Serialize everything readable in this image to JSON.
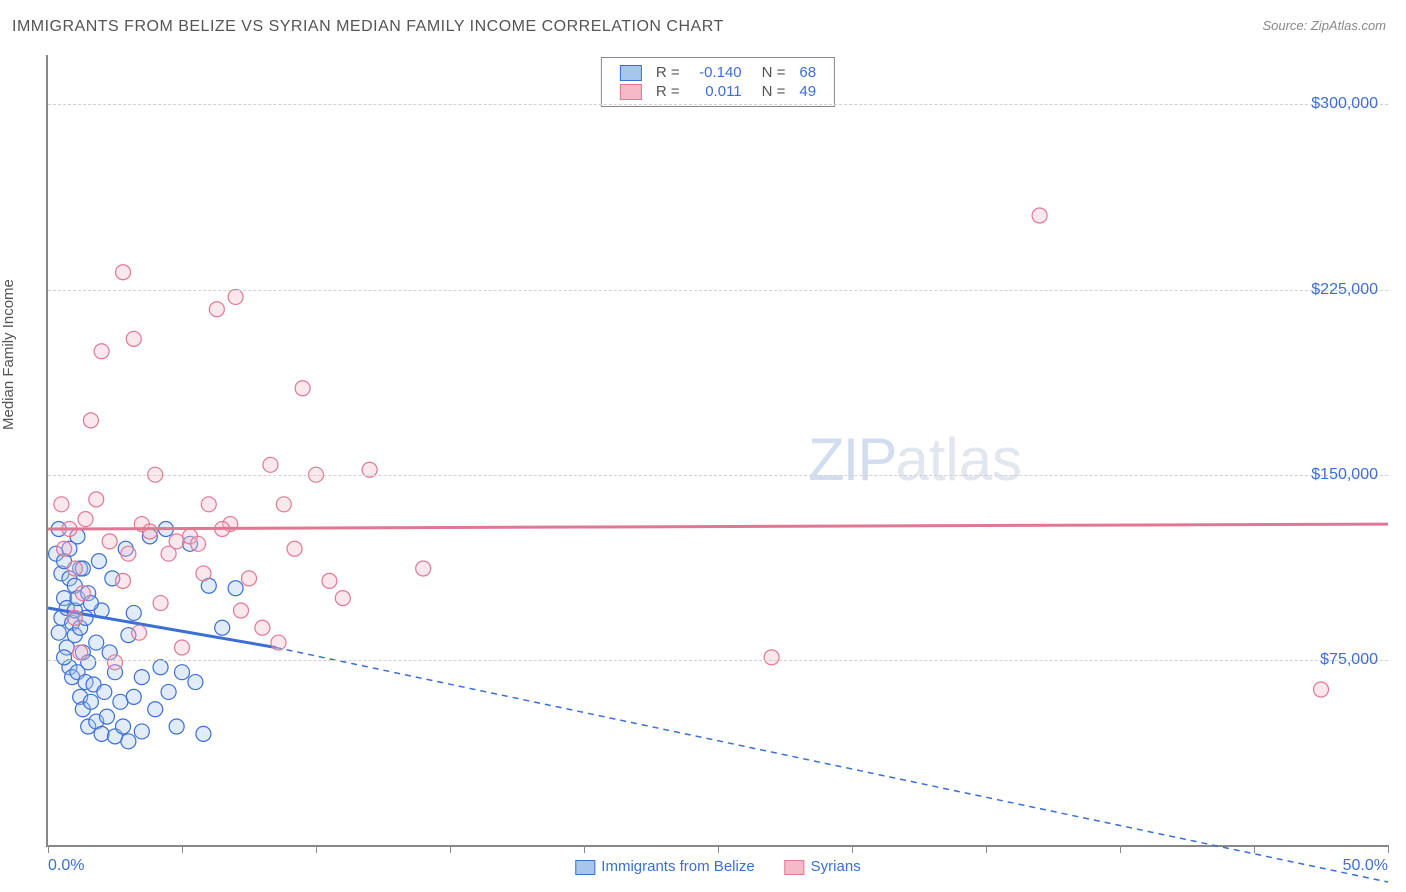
{
  "title": "IMMIGRANTS FROM BELIZE VS SYRIAN MEDIAN FAMILY INCOME CORRELATION CHART",
  "source": "Source: ZipAtlas.com",
  "ylabel": "Median Family Income",
  "watermark_a": "ZIP",
  "watermark_b": "atlas",
  "chart": {
    "type": "scatter",
    "xlim": [
      0,
      50
    ],
    "ylim": [
      0,
      320000
    ],
    "y_ticks": [
      75000,
      150000,
      225000,
      300000
    ],
    "y_tick_labels": [
      "$75,000",
      "$150,000",
      "$225,000",
      "$300,000"
    ],
    "x_tick_positions": [
      0,
      5,
      10,
      15,
      20,
      25,
      30,
      35,
      40,
      45,
      50
    ],
    "x_start_label": "0.0%",
    "x_end_label": "50.0%",
    "grid_color": "#d0d0d0",
    "axis_color": "#888888",
    "bg_color": "#ffffff",
    "label_color": "#3b6fd4",
    "series": [
      {
        "name": "Immigrants from Belize",
        "fill": "#a8c5ed",
        "stroke": "#3b6fd4",
        "r_value": "-0.140",
        "n_value": "68",
        "regression": {
          "x1": 0,
          "y1": 96000,
          "x2": 8.5,
          "y2": 80000,
          "extrap_x2": 50,
          "extrap_y2": -15000
        },
        "points": [
          [
            0.3,
            118000
          ],
          [
            0.4,
            128000
          ],
          [
            0.5,
            92000
          ],
          [
            0.5,
            110000
          ],
          [
            0.6,
            100000
          ],
          [
            0.6,
            115000
          ],
          [
            0.7,
            80000
          ],
          [
            0.7,
            96000
          ],
          [
            0.8,
            72000
          ],
          [
            0.8,
            108000
          ],
          [
            0.8,
            120000
          ],
          [
            0.9,
            68000
          ],
          [
            0.9,
            90000
          ],
          [
            1.0,
            85000
          ],
          [
            1.0,
            95000
          ],
          [
            1.0,
            105000
          ],
          [
            1.1,
            70000
          ],
          [
            1.1,
            100000
          ],
          [
            1.2,
            60000
          ],
          [
            1.2,
            88000
          ],
          [
            1.2,
            112000
          ],
          [
            1.3,
            55000
          ],
          [
            1.3,
            78000
          ],
          [
            1.4,
            66000
          ],
          [
            1.4,
            92000
          ],
          [
            1.5,
            48000
          ],
          [
            1.5,
            74000
          ],
          [
            1.5,
            102000
          ],
          [
            1.6,
            58000
          ],
          [
            1.7,
            65000
          ],
          [
            1.8,
            82000
          ],
          [
            1.8,
            50000
          ],
          [
            2.0,
            45000
          ],
          [
            2.0,
            95000
          ],
          [
            2.1,
            62000
          ],
          [
            2.2,
            52000
          ],
          [
            2.3,
            78000
          ],
          [
            2.5,
            44000
          ],
          [
            2.5,
            70000
          ],
          [
            2.7,
            58000
          ],
          [
            2.8,
            48000
          ],
          [
            3.0,
            42000
          ],
          [
            3.0,
            85000
          ],
          [
            3.2,
            60000
          ],
          [
            3.5,
            46000
          ],
          [
            3.5,
            68000
          ],
          [
            3.8,
            125000
          ],
          [
            4.0,
            55000
          ],
          [
            4.2,
            72000
          ],
          [
            4.5,
            62000
          ],
          [
            4.8,
            48000
          ],
          [
            5.0,
            70000
          ],
          [
            5.3,
            122000
          ],
          [
            5.5,
            66000
          ],
          [
            5.8,
            45000
          ],
          [
            6.0,
            105000
          ],
          [
            6.5,
            88000
          ],
          [
            7.0,
            104000
          ],
          [
            3.2,
            94000
          ],
          [
            2.4,
            108000
          ],
          [
            1.9,
            115000
          ],
          [
            1.6,
            98000
          ],
          [
            1.3,
            112000
          ],
          [
            1.1,
            125000
          ],
          [
            4.4,
            128000
          ],
          [
            2.9,
            120000
          ],
          [
            0.4,
            86000
          ],
          [
            0.6,
            76000
          ]
        ]
      },
      {
        "name": "Syrians",
        "fill": "#f5b9c8",
        "stroke": "#e07893",
        "r_value": "0.011",
        "n_value": "49",
        "regression": {
          "x1": 0,
          "y1": 128000,
          "x2": 50,
          "y2": 130000
        },
        "points": [
          [
            0.5,
            138000
          ],
          [
            0.8,
            128000
          ],
          [
            1.0,
            92000
          ],
          [
            1.2,
            78000
          ],
          [
            1.4,
            132000
          ],
          [
            1.6,
            172000
          ],
          [
            1.8,
            140000
          ],
          [
            2.0,
            200000
          ],
          [
            2.3,
            123000
          ],
          [
            2.5,
            74000
          ],
          [
            2.8,
            107000
          ],
          [
            3.0,
            118000
          ],
          [
            3.2,
            205000
          ],
          [
            3.5,
            130000
          ],
          [
            3.8,
            127000
          ],
          [
            4.0,
            150000
          ],
          [
            4.2,
            98000
          ],
          [
            4.5,
            118000
          ],
          [
            5.0,
            80000
          ],
          [
            5.3,
            125000
          ],
          [
            5.8,
            110000
          ],
          [
            6.0,
            138000
          ],
          [
            6.3,
            217000
          ],
          [
            6.8,
            130000
          ],
          [
            7.0,
            222000
          ],
          [
            7.2,
            95000
          ],
          [
            7.5,
            108000
          ],
          [
            8.0,
            88000
          ],
          [
            8.3,
            154000
          ],
          [
            8.8,
            138000
          ],
          [
            9.2,
            120000
          ],
          [
            9.5,
            185000
          ],
          [
            10.0,
            150000
          ],
          [
            10.5,
            107000
          ],
          [
            11.0,
            100000
          ],
          [
            12.0,
            152000
          ],
          [
            2.8,
            232000
          ],
          [
            14.0,
            112000
          ],
          [
            37.0,
            255000
          ],
          [
            27.0,
            76000
          ],
          [
            47.5,
            63000
          ],
          [
            0.6,
            120000
          ],
          [
            1.0,
            112000
          ],
          [
            1.3,
            102000
          ],
          [
            5.6,
            122000
          ],
          [
            6.5,
            128000
          ],
          [
            4.8,
            123000
          ],
          [
            3.4,
            86000
          ],
          [
            8.6,
            82000
          ]
        ]
      }
    ],
    "legend_bottom": [
      "Immigrants from Belize",
      "Syrians"
    ],
    "legend_top_labels": {
      "r": "R =",
      "n": "N ="
    }
  }
}
